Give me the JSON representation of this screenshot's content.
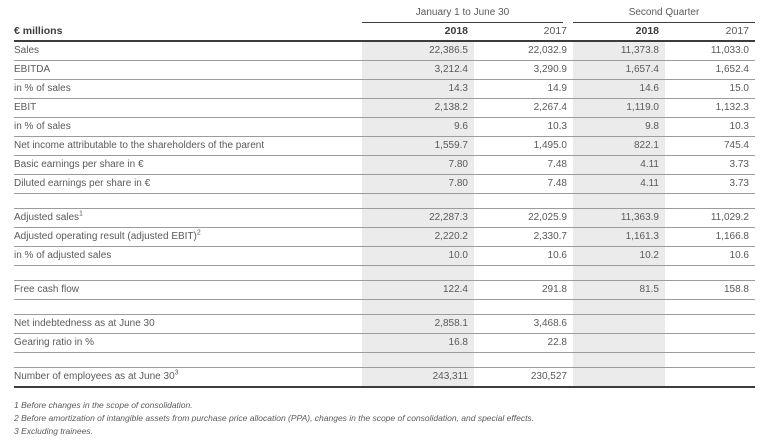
{
  "table": {
    "unit_label": "€ millions",
    "col_groups": [
      {
        "label": "January 1 to June 30"
      },
      {
        "label": "Second Quarter"
      }
    ],
    "year_headers": [
      "2018",
      "2017",
      "2018",
      "2017"
    ],
    "sections": [
      {
        "rows": [
          {
            "label": "Sales",
            "values": [
              "22,386.5",
              "22,032.9",
              "11,373.8",
              "11,033.0"
            ]
          },
          {
            "label": "EBITDA",
            "values": [
              "3,212.4",
              "3,290.9",
              "1,657.4",
              "1,652.4"
            ]
          },
          {
            "label": "in % of sales",
            "values": [
              "14.3",
              "14.9",
              "14.6",
              "15.0"
            ]
          },
          {
            "label": "EBIT",
            "values": [
              "2,138.2",
              "2,267.4",
              "1,119.0",
              "1,132.3"
            ]
          },
          {
            "label": "in % of sales",
            "values": [
              "9.6",
              "10.3",
              "9.8",
              "10.3"
            ]
          },
          {
            "label": "Net income attributable to the shareholders of the parent",
            "values": [
              "1,559.7",
              "1,495.0",
              "822.1",
              "745.4"
            ]
          },
          {
            "label": "Basic earnings per share in €",
            "values": [
              "7.80",
              "7.48",
              "4.11",
              "3.73"
            ]
          },
          {
            "label": "Diluted earnings per share in €",
            "values": [
              "7.80",
              "7.48",
              "4.11",
              "3.73"
            ]
          }
        ]
      },
      {
        "rows": [
          {
            "label": "Adjusted sales",
            "sup": "1",
            "values": [
              "22,287.3",
              "22,025.9",
              "11,363.9",
              "11,029.2"
            ]
          },
          {
            "label": "Adjusted operating result (adjusted EBIT)",
            "sup": "2",
            "values": [
              "2,220.2",
              "2,330.7",
              "1,161.3",
              "1,166.8"
            ]
          },
          {
            "label": "in % of adjusted sales",
            "values": [
              "10.0",
              "10.6",
              "10.2",
              "10.6"
            ]
          }
        ]
      },
      {
        "rows": [
          {
            "label": "Free cash flow",
            "values": [
              "122.4",
              "291.8",
              "81.5",
              "158.8"
            ]
          }
        ]
      },
      {
        "rows": [
          {
            "label": "Net indebtedness as at June 30",
            "values": [
              "2,858.1",
              "3,468.6",
              "",
              ""
            ]
          },
          {
            "label": "Gearing ratio in %",
            "values": [
              "16.8",
              "22.8",
              "",
              ""
            ]
          }
        ]
      },
      {
        "rows": [
          {
            "label": "Number of employees as at June 30",
            "sup": "3",
            "values": [
              "243,311",
              "230,527",
              "",
              ""
            ]
          }
        ]
      }
    ],
    "footnotes": [
      "1 Before changes in the scope of consolidation.",
      "2 Before amortization of intangible assets from purchase price allocation (PPA), changes in the scope of consolidation, and special effects.",
      "3 Excluding trainees."
    ]
  },
  "colors": {
    "shaded_column": "#ebebeb",
    "dark_text": "#3c3c3b",
    "gray_text": "#5a5a5a",
    "row_line": "#9c9c9c",
    "dark_line": "#3c3c3b"
  }
}
